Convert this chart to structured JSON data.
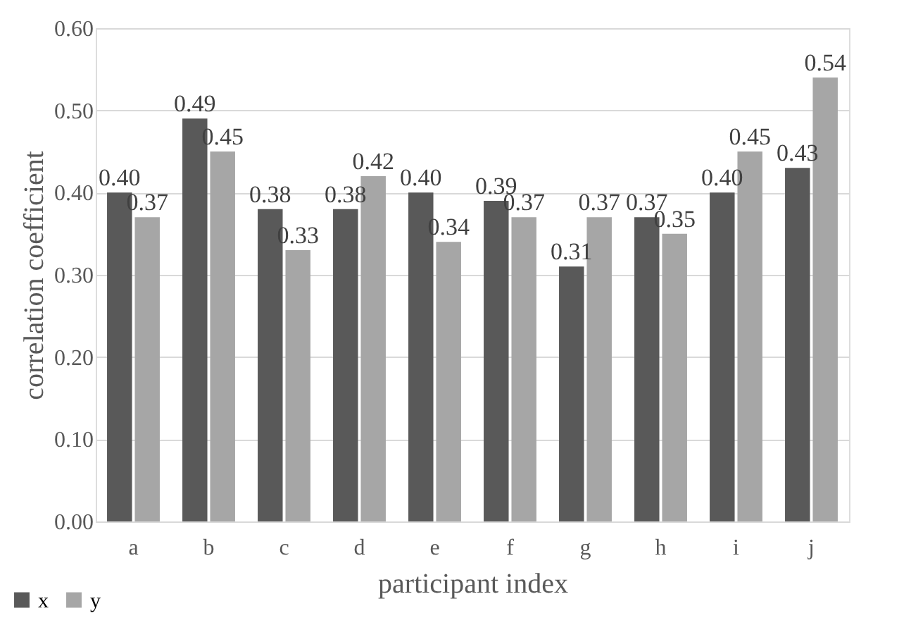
{
  "chart_data": {
    "type": "bar",
    "xlabel": "participant index",
    "ylabel": "correlation coefficient",
    "categories": [
      "a",
      "b",
      "c",
      "d",
      "e",
      "f",
      "g",
      "h",
      "i",
      "j"
    ],
    "series": [
      {
        "name": "x",
        "color": "#595959",
        "values": [
          0.4,
          0.49,
          0.38,
          0.38,
          0.4,
          0.39,
          0.31,
          0.37,
          0.4,
          0.43
        ],
        "value_labels": [
          "0.40",
          "0.49",
          "0.38",
          "0.38",
          "0.40",
          "0.39",
          "0.31",
          "0.37",
          "0.40",
          "0.43"
        ]
      },
      {
        "name": "y",
        "color": "#a6a6a6",
        "values": [
          0.37,
          0.45,
          0.33,
          0.42,
          0.34,
          0.37,
          0.37,
          0.35,
          0.45,
          0.54
        ],
        "value_labels": [
          "0.37",
          "0.45",
          "0.33",
          "0.42",
          "0.34",
          "0.37",
          "0.37",
          "0.35",
          "0.45",
          "0.54"
        ]
      }
    ],
    "ylim": [
      0,
      0.6
    ],
    "yticks": [
      {
        "value": 0,
        "label": "0.00"
      },
      {
        "value": 0.1,
        "label": "0.10"
      },
      {
        "value": 0.2,
        "label": "0.20"
      },
      {
        "value": 0.3,
        "label": "0.30"
      },
      {
        "value": 0.4,
        "label": "0.40"
      },
      {
        "value": 0.5,
        "label": "0.50"
      },
      {
        "value": 0.6,
        "label": "0.60"
      }
    ],
    "grid": "y",
    "legend": "bottom left"
  }
}
